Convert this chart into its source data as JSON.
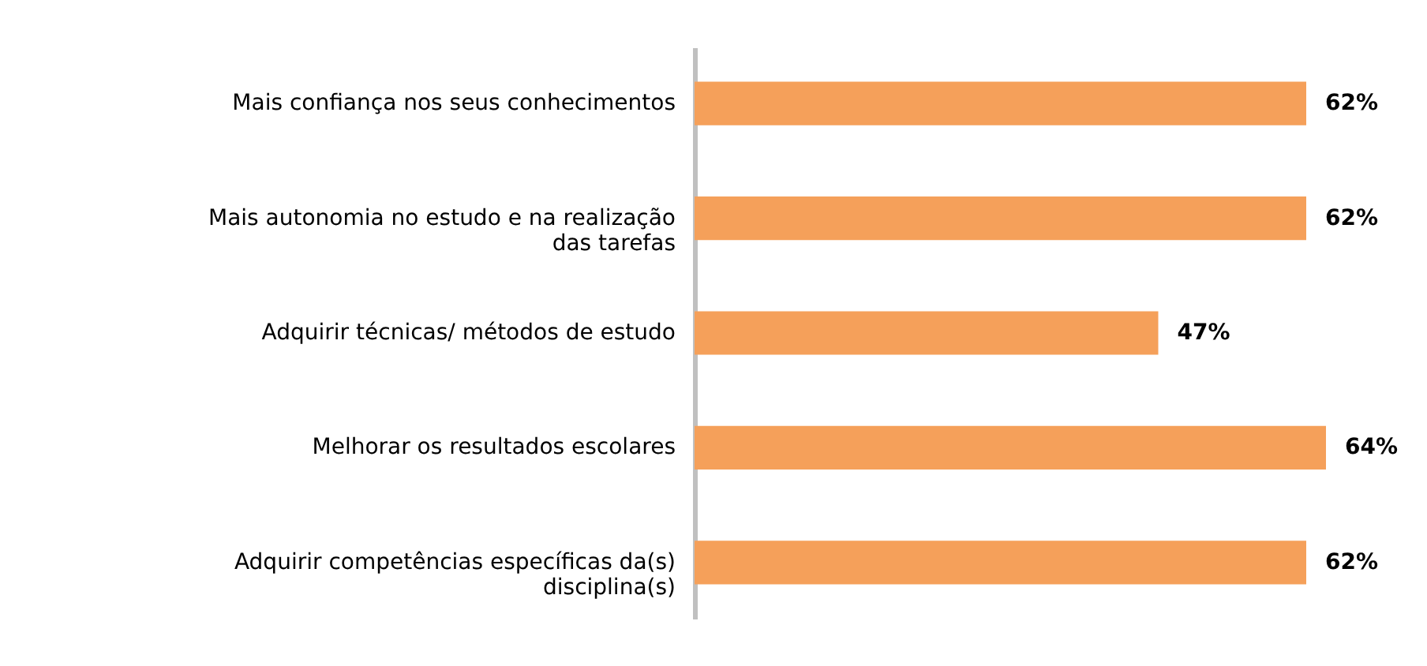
{
  "chart_data": {
    "type": "bar",
    "orientation": "horizontal",
    "categories": [
      "Mais confiança nos seus conhecimentos",
      "Mais autonomia no estudo e na realização das tarefas",
      "Adquirir técnicas/ métodos de estudo",
      "Melhorar os resultados escolares",
      "Adquirir competências específicas da(s) disciplina(s)"
    ],
    "values": [
      62,
      62,
      47,
      64,
      62
    ],
    "value_labels": [
      "62%",
      "62%",
      "47%",
      "64%",
      "62%"
    ],
    "color": "#f5a05a"
  }
}
